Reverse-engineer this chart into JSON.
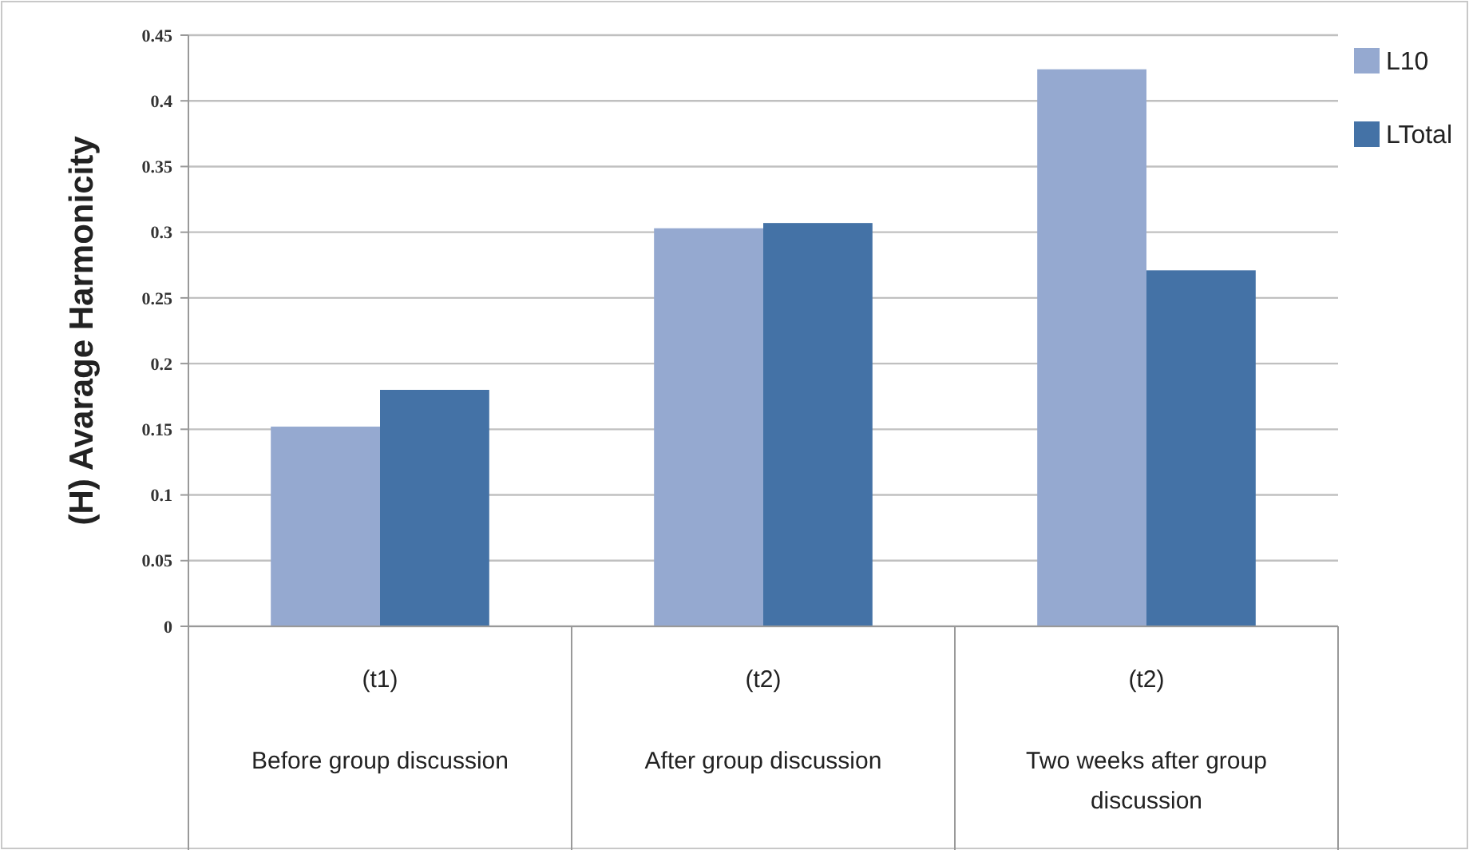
{
  "chart_data": {
    "type": "bar",
    "ylabel": "(H) Avarage Harmonicity",
    "categories": [
      "(t1)\nBefore group discussion",
      "(t2)\nAfter group discussion",
      "(t2)\nTwo weeks after group discussion"
    ],
    "series": [
      {
        "name": "L10",
        "color": "#95a9d0",
        "values": [
          0.152,
          0.303,
          0.424
        ]
      },
      {
        "name": "LTotal",
        "color": "#4472a6",
        "values": [
          0.18,
          0.307,
          0.271
        ]
      }
    ],
    "ylim": [
      0,
      0.45
    ],
    "yticks": [
      0,
      0.05,
      0.1,
      0.15,
      0.2,
      0.25,
      0.3,
      0.35,
      0.4,
      0.45
    ],
    "grid": "y",
    "legend": "top right"
  }
}
